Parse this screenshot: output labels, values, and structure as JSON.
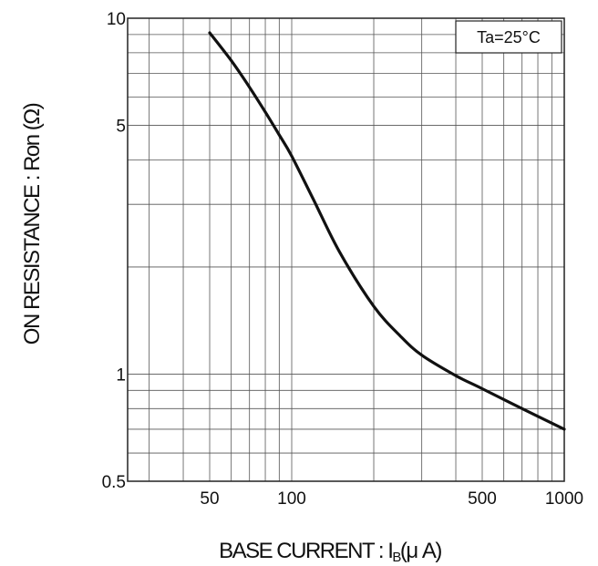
{
  "chart_data": {
    "type": "line",
    "x_scale": "log",
    "y_scale": "log",
    "xlim": [
      25,
      1000
    ],
    "ylim": [
      0.5,
      10
    ],
    "grid": true,
    "xticks": [
      {
        "value": 50,
        "label": "50"
      },
      {
        "value": 100,
        "label": "100"
      },
      {
        "value": 500,
        "label": "500"
      },
      {
        "value": 1000,
        "label": "1000"
      }
    ],
    "yticks": [
      {
        "value": 0.5,
        "label": "0.5"
      },
      {
        "value": 1,
        "label": "1"
      },
      {
        "value": 5,
        "label": "5"
      },
      {
        "value": 10,
        "label": "10"
      }
    ],
    "xlabel": {
      "main": "BASE CURRENT : I",
      "sub": "B",
      "unit": "(μ A)"
    },
    "ylabel": "ON RESISTANCE : Ron (Ω)",
    "annotation": "Ta=25°C",
    "series": [
      {
        "x": [
          50,
          60,
          70,
          80,
          90,
          100,
          120,
          150,
          200,
          250,
          300,
          400,
          500,
          700,
          1000
        ],
        "y": [
          9.1,
          7.6,
          6.4,
          5.45,
          4.7,
          4.1,
          3.1,
          2.2,
          1.55,
          1.28,
          1.13,
          0.99,
          0.91,
          0.8,
          0.7
        ]
      }
    ],
    "colors": {
      "line": "#111111",
      "grid": "#555555",
      "frame": "#222222"
    }
  }
}
